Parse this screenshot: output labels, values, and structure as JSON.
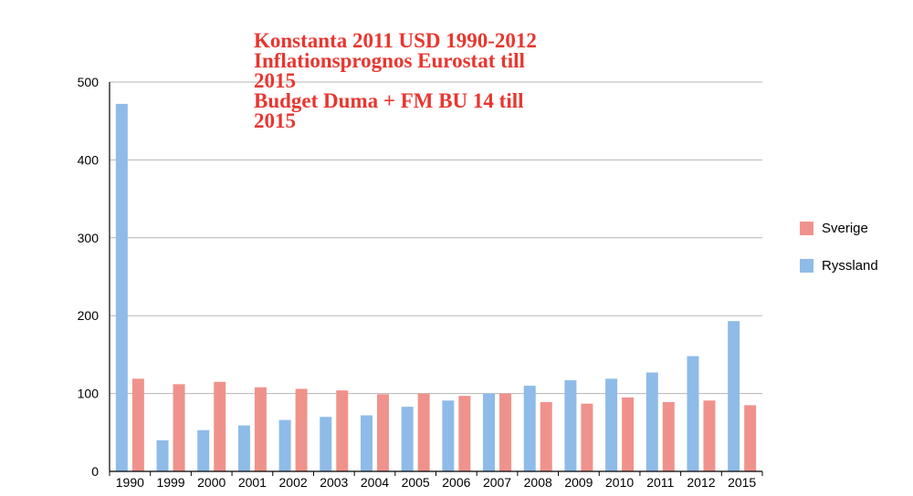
{
  "chart_data": {
    "type": "bar",
    "title_lines": [
      "Konstanta 2011 USD 1990-2012",
      "Inflationsprognos Eurostat till",
      "2015",
      "Budget Duma + FM BU 14 till",
      "2015"
    ],
    "categories": [
      "1990",
      "1999",
      "2000",
      "2001",
      "2002",
      "2003",
      "2004",
      "2005",
      "2006",
      "2007",
      "2008",
      "2009",
      "2010",
      "2011",
      "2012",
      "2015"
    ],
    "series": [
      {
        "name": "Ryssland",
        "color": "#8fbbe8",
        "values": [
          472,
          40,
          53,
          59,
          66,
          70,
          72,
          83,
          91,
          100,
          110,
          117,
          119,
          127,
          148,
          193
        ]
      },
      {
        "name": "Sverige",
        "color": "#f0928c",
        "values": [
          119,
          112,
          115,
          108,
          106,
          104,
          99,
          100,
          97,
          100,
          89,
          87,
          95,
          89,
          91,
          85
        ]
      }
    ],
    "legend_order": [
      "Sverige",
      "Ryssland"
    ],
    "legend_position": "right",
    "y_ticks": [
      0,
      100,
      200,
      300,
      400,
      500
    ],
    "ylim": [
      0,
      500
    ],
    "grid": true,
    "title_color": "#e8362f"
  }
}
